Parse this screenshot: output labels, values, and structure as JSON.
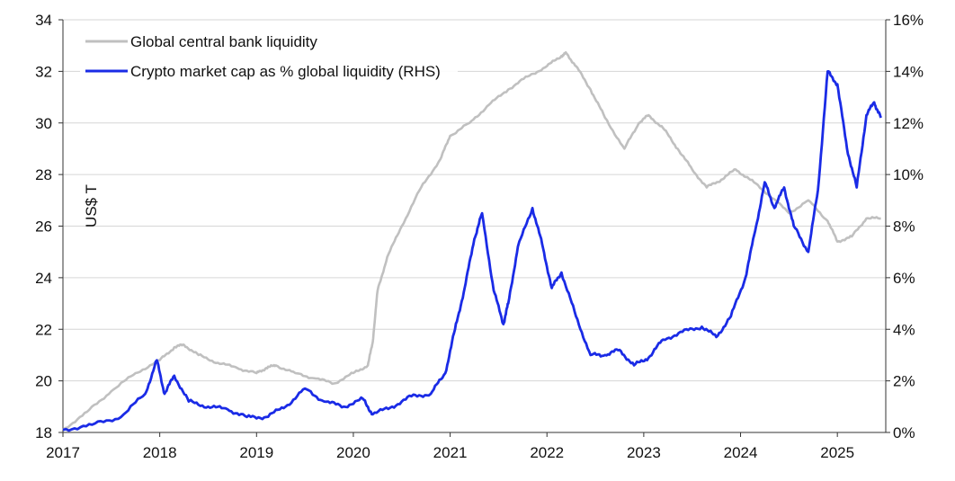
{
  "chart_data": {
    "type": "line",
    "title": "",
    "xlabel": "",
    "ylabel_left": "US$ T",
    "ylabel_right": "",
    "xlim": [
      2017,
      2025.5
    ],
    "ylim_left": [
      18,
      34
    ],
    "ylim_right": [
      0,
      16
    ],
    "y_right_unit": "%",
    "grid": true,
    "legend_placement": "top-left",
    "x_ticks": [
      "2017",
      "2018",
      "2019",
      "2020",
      "2021",
      "2022",
      "2023",
      "2024",
      "2025"
    ],
    "y_left_ticks": [
      "18",
      "20",
      "22",
      "24",
      "26",
      "28",
      "30",
      "32",
      "34"
    ],
    "y_right_ticks": [
      "0%",
      "2%",
      "4%",
      "6%",
      "8%",
      "10%",
      "12%",
      "14%",
      "16%"
    ],
    "series": [
      {
        "name": "Global central bank liquidity",
        "axis": "left",
        "color": "#c0c0c0",
        "points": [
          [
            2017.0,
            18.1
          ],
          [
            2017.25,
            18.8
          ],
          [
            2017.5,
            19.6
          ],
          [
            2017.75,
            20.3
          ],
          [
            2018.0,
            20.8
          ],
          [
            2018.15,
            21.3
          ],
          [
            2018.25,
            21.4
          ],
          [
            2018.4,
            21.0
          ],
          [
            2018.6,
            20.7
          ],
          [
            2018.8,
            20.5
          ],
          [
            2019.0,
            20.3
          ],
          [
            2019.1,
            20.5
          ],
          [
            2019.2,
            20.6
          ],
          [
            2019.4,
            20.3
          ],
          [
            2019.6,
            20.1
          ],
          [
            2019.8,
            19.9
          ],
          [
            2020.0,
            20.3
          ],
          [
            2020.15,
            20.6
          ],
          [
            2020.2,
            21.5
          ],
          [
            2020.25,
            23.5
          ],
          [
            2020.35,
            24.8
          ],
          [
            2020.5,
            26.0
          ],
          [
            2020.7,
            27.5
          ],
          [
            2020.9,
            28.6
          ],
          [
            2021.0,
            29.5
          ],
          [
            2021.2,
            30.0
          ],
          [
            2021.4,
            30.7
          ],
          [
            2021.6,
            31.3
          ],
          [
            2021.8,
            31.8
          ],
          [
            2022.0,
            32.2
          ],
          [
            2022.15,
            32.6
          ],
          [
            2022.2,
            32.7
          ],
          [
            2022.3,
            32.2
          ],
          [
            2022.45,
            31.3
          ],
          [
            2022.6,
            30.2
          ],
          [
            2022.8,
            29.0
          ],
          [
            2022.95,
            30.0
          ],
          [
            2023.05,
            30.3
          ],
          [
            2023.2,
            29.8
          ],
          [
            2023.35,
            29.0
          ],
          [
            2023.5,
            28.2
          ],
          [
            2023.65,
            27.5
          ],
          [
            2023.8,
            27.8
          ],
          [
            2023.95,
            28.2
          ],
          [
            2024.1,
            27.8
          ],
          [
            2024.3,
            27.2
          ],
          [
            2024.5,
            26.5
          ],
          [
            2024.7,
            27.0
          ],
          [
            2024.9,
            26.2
          ],
          [
            2025.0,
            25.4
          ],
          [
            2025.15,
            25.6
          ],
          [
            2025.3,
            26.3
          ],
          [
            2025.45,
            26.3
          ]
        ]
      },
      {
        "name": "Crypto market cap as % global liquidity (RHS)",
        "axis": "right",
        "color": "#1a2be6",
        "points": [
          [
            2017.0,
            0.1
          ],
          [
            2017.3,
            0.3
          ],
          [
            2017.6,
            0.6
          ],
          [
            2017.85,
            1.5
          ],
          [
            2017.97,
            2.8
          ],
          [
            2018.05,
            1.5
          ],
          [
            2018.15,
            2.2
          ],
          [
            2018.3,
            1.2
          ],
          [
            2018.5,
            1.0
          ],
          [
            2018.7,
            0.9
          ],
          [
            2018.9,
            0.6
          ],
          [
            2019.1,
            0.6
          ],
          [
            2019.3,
            1.0
          ],
          [
            2019.5,
            1.7
          ],
          [
            2019.7,
            1.2
          ],
          [
            2019.9,
            1.0
          ],
          [
            2020.1,
            1.3
          ],
          [
            2020.2,
            0.7
          ],
          [
            2020.4,
            1.0
          ],
          [
            2020.6,
            1.4
          ],
          [
            2020.8,
            1.5
          ],
          [
            2020.95,
            2.3
          ],
          [
            2021.05,
            4.0
          ],
          [
            2021.15,
            5.6
          ],
          [
            2021.25,
            7.5
          ],
          [
            2021.33,
            8.5
          ],
          [
            2021.45,
            5.5
          ],
          [
            2021.55,
            4.2
          ],
          [
            2021.6,
            5.0
          ],
          [
            2021.7,
            7.2
          ],
          [
            2021.85,
            8.7
          ],
          [
            2021.95,
            7.3
          ],
          [
            2022.05,
            5.6
          ],
          [
            2022.15,
            6.2
          ],
          [
            2022.3,
            4.5
          ],
          [
            2022.45,
            3.0
          ],
          [
            2022.6,
            3.0
          ],
          [
            2022.75,
            3.2
          ],
          [
            2022.9,
            2.6
          ],
          [
            2023.05,
            2.9
          ],
          [
            2023.2,
            3.6
          ],
          [
            2023.4,
            3.9
          ],
          [
            2023.6,
            4.1
          ],
          [
            2023.75,
            3.7
          ],
          [
            2023.9,
            4.5
          ],
          [
            2024.05,
            6.0
          ],
          [
            2024.15,
            7.8
          ],
          [
            2024.25,
            9.7
          ],
          [
            2024.35,
            8.7
          ],
          [
            2024.45,
            9.5
          ],
          [
            2024.55,
            8.0
          ],
          [
            2024.7,
            7.0
          ],
          [
            2024.8,
            9.4
          ],
          [
            2024.9,
            14.0
          ],
          [
            2025.0,
            13.5
          ],
          [
            2025.1,
            11.0
          ],
          [
            2025.2,
            9.5
          ],
          [
            2025.3,
            12.3
          ],
          [
            2025.38,
            12.8
          ],
          [
            2025.45,
            12.2
          ]
        ]
      }
    ]
  }
}
